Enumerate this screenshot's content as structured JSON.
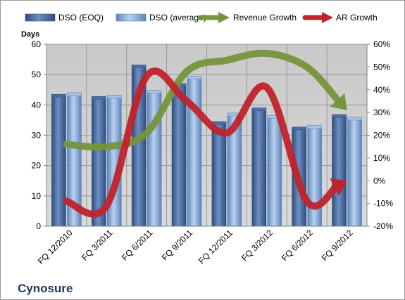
{
  "chart_data": {
    "type": "bar",
    "company": "Cynosure",
    "y_left_label": "Days",
    "ylim_left": [
      0,
      60
    ],
    "y_left_ticks": [
      0,
      10,
      20,
      30,
      40,
      50,
      60
    ],
    "ylim_right": [
      -20,
      60
    ],
    "y_right_ticks": [
      -20,
      -10,
      0,
      10,
      20,
      30,
      40,
      50,
      60
    ],
    "grid": true,
    "legend_position": "top",
    "categories": [
      "FQ 12/2010",
      "FQ 3/2011",
      "FQ 6/2011",
      "FQ 9/2011",
      "FQ 12/2011",
      "FQ 3/2012",
      "FQ 6/2012",
      "FQ 9/2012"
    ],
    "series": [
      {
        "name": "DSO (EOQ)",
        "type": "bar",
        "axis": "left",
        "color": "#4a6fa5",
        "values": [
          43.5,
          42.8,
          53.2,
          47.0,
          34.5,
          39.0,
          32.7,
          36.8
        ]
      },
      {
        "name": "DSO (average)",
        "type": "bar",
        "axis": "left",
        "color": "#8eb4e3",
        "values": [
          44.0,
          43.2,
          44.8,
          49.5,
          37.3,
          36.5,
          33.2,
          35.9
        ]
      },
      {
        "name": "Revenue Growth",
        "type": "line",
        "axis": "right",
        "color": "#77933c",
        "values": [
          16,
          15,
          21,
          48,
          53,
          56,
          50,
          31
        ]
      },
      {
        "name": "AR Growth",
        "type": "line",
        "axis": "right",
        "color": "#c0232b",
        "values": [
          -9,
          -11,
          46,
          35,
          21,
          41,
          -9,
          0
        ]
      }
    ]
  }
}
